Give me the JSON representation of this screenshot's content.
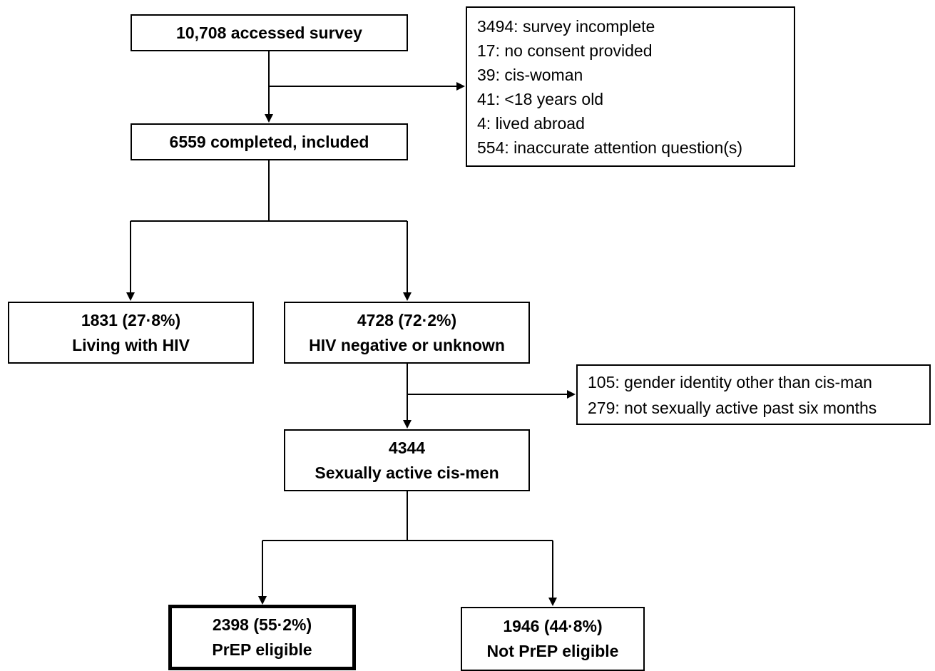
{
  "flowchart": {
    "accessed": {
      "line1": "10,708 accessed survey"
    },
    "exclusions1": {
      "items": [
        "3494: survey incomplete",
        "17: no consent provided",
        "39: cis-woman",
        "41: <18 years old",
        "4: lived abroad",
        "554: inaccurate attention question(s)"
      ]
    },
    "completed": {
      "line1": "6559 completed, included"
    },
    "living_hiv": {
      "line1": "1831 (27·8%)",
      "line2": "Living with HIV"
    },
    "hiv_negative": {
      "line1": "4728 (72·2%)",
      "line2": "HIV negative or unknown"
    },
    "exclusions2": {
      "items": [
        "105: gender identity other than cis-man",
        "279: not sexually active past six months"
      ]
    },
    "sexually_active": {
      "line1": "4344",
      "line2": "Sexually active cis-men"
    },
    "prep_eligible": {
      "line1": "2398 (55·2%)",
      "line2": "PrEP eligible"
    },
    "not_prep_eligible": {
      "line1": "1946 (44·8%)",
      "line2": "Not PrEP eligible"
    }
  },
  "colors": {
    "stroke": "#000000",
    "background": "#ffffff"
  }
}
